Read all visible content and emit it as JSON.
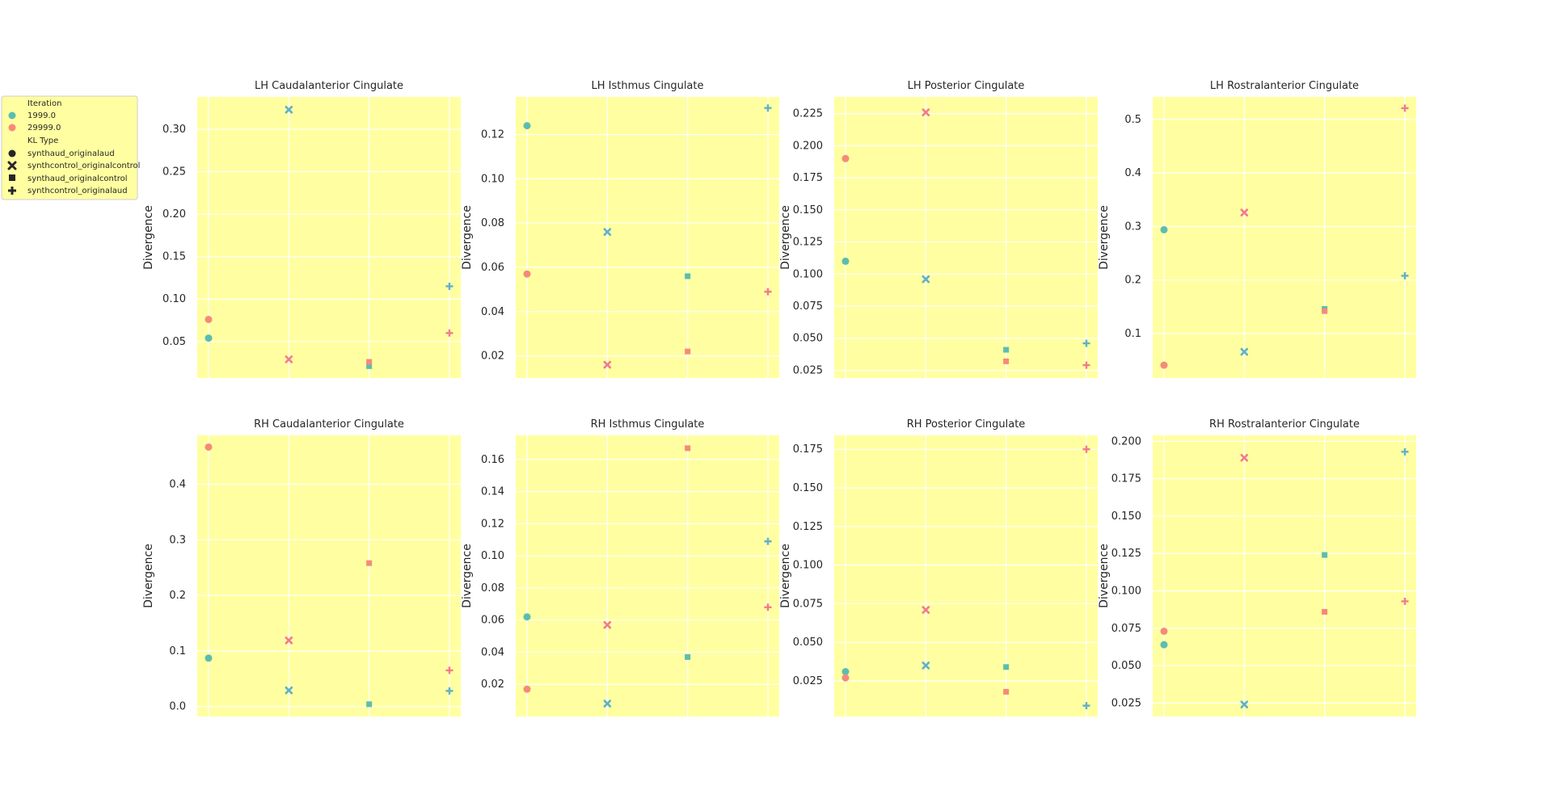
{
  "legend": {
    "iteration_title": "Iteration",
    "iteration_entries": [
      {
        "label": "1999.0",
        "color": "#66c2a5"
      },
      {
        "label": "29999.0",
        "color": "#fc8d62"
      }
    ],
    "kltype_title": "KL Type",
    "kltype_entries": [
      {
        "label": "synthaud_originalaud",
        "marker": "circle"
      },
      {
        "label": "synthcontrol_originalcontrol",
        "marker": "x"
      },
      {
        "label": "synthaud_originalcontrol",
        "marker": "square"
      },
      {
        "label": "synthcontrol_originalaud",
        "marker": "plus"
      }
    ]
  },
  "colors": {
    "panel_bg": "#ffffa1",
    "grid": "#ffffff",
    "teal": "#5bbdb0",
    "teal_cross": "#5fb0cc",
    "salmon": "#f58a7a",
    "salmon_cross": "#f27a90",
    "text": "#262626"
  },
  "chart_data": [
    {
      "type": "scatter",
      "title": "LH Caudalanterior Cingulate",
      "xlabel": "",
      "ylabel": "Divergence",
      "ylim": [
        0.007,
        0.338
      ],
      "yticks": [
        0.05,
        0.1,
        0.15,
        0.2,
        0.25,
        0.3
      ],
      "ytick_labels": [
        "0.05",
        "0.10",
        "0.15",
        "0.20",
        "0.25",
        "0.30"
      ],
      "x": [
        "synthaud_originalaud",
        "synthcontrol_originalcontrol",
        "synthaud_originalcontrol",
        "synthcontrol_originalaud"
      ],
      "series": [
        {
          "name": "1999.0",
          "values": [
            0.054,
            0.323,
            0.021,
            0.115
          ]
        },
        {
          "name": "29999.0",
          "values": [
            0.076,
            0.029,
            0.026,
            0.06
          ]
        }
      ]
    },
    {
      "type": "scatter",
      "title": "LH Isthmus Cingulate",
      "xlabel": "",
      "ylabel": "Divergence",
      "ylim": [
        0.01,
        0.137
      ],
      "yticks": [
        0.02,
        0.04,
        0.06,
        0.08,
        0.1,
        0.12
      ],
      "ytick_labels": [
        "0.02",
        "0.04",
        "0.06",
        "0.08",
        "0.10",
        "0.12"
      ],
      "x": [
        "synthaud_originalaud",
        "synthcontrol_originalcontrol",
        "synthaud_originalcontrol",
        "synthcontrol_originalaud"
      ],
      "series": [
        {
          "name": "1999.0",
          "values": [
            0.124,
            0.076,
            0.056,
            0.132
          ]
        },
        {
          "name": "29999.0",
          "values": [
            0.057,
            0.016,
            0.022,
            0.049
          ]
        }
      ]
    },
    {
      "type": "scatter",
      "title": "LH Posterior Cingulate",
      "xlabel": "",
      "ylabel": "Divergence",
      "ylim": [
        0.019,
        0.238
      ],
      "yticks": [
        0.025,
        0.05,
        0.075,
        0.1,
        0.125,
        0.15,
        0.175,
        0.2,
        0.225
      ],
      "ytick_labels": [
        "0.025",
        "0.050",
        "0.075",
        "0.100",
        "0.125",
        "0.150",
        "0.175",
        "0.200",
        "0.225"
      ],
      "x": [
        "synthaud_originalaud",
        "synthcontrol_originalcontrol",
        "synthaud_originalcontrol",
        "synthcontrol_originalaud"
      ],
      "series": [
        {
          "name": "1999.0",
          "values": [
            0.11,
            0.096,
            0.041,
            0.046
          ]
        },
        {
          "name": "29999.0",
          "values": [
            0.19,
            0.226,
            0.032,
            0.029
          ]
        }
      ]
    },
    {
      "type": "scatter",
      "title": "LH Rostralanterior Cingulate",
      "xlabel": "",
      "ylabel": "Divergence",
      "ylim": [
        0.017,
        0.542
      ],
      "yticks": [
        0.1,
        0.2,
        0.3,
        0.4,
        0.5
      ],
      "ytick_labels": [
        "0.1",
        "0.2",
        "0.3",
        "0.4",
        "0.5"
      ],
      "x": [
        "synthaud_originalaud",
        "synthcontrol_originalcontrol",
        "synthaud_originalcontrol",
        "synthcontrol_originalaud"
      ],
      "series": [
        {
          "name": "1999.0",
          "values": [
            0.294,
            0.066,
            0.146,
            0.208
          ]
        },
        {
          "name": "29999.0",
          "values": [
            0.041,
            0.326,
            0.142,
            0.521
          ]
        }
      ]
    },
    {
      "type": "scatter",
      "title": "RH Caudalanterior Cingulate",
      "xlabel": "",
      "ylabel": "Divergence",
      "ylim": [
        -0.018,
        0.488
      ],
      "yticks": [
        0.0,
        0.1,
        0.2,
        0.3,
        0.4
      ],
      "ytick_labels": [
        "0.0",
        "0.1",
        "0.2",
        "0.3",
        "0.4"
      ],
      "x": [
        "synthaud_originalaud",
        "synthcontrol_originalcontrol",
        "synthaud_originalcontrol",
        "synthcontrol_originalaud"
      ],
      "series": [
        {
          "name": "1999.0",
          "values": [
            0.087,
            0.029,
            0.004,
            0.028
          ]
        },
        {
          "name": "29999.0",
          "values": [
            0.467,
            0.119,
            0.258,
            0.065
          ]
        }
      ]
    },
    {
      "type": "scatter",
      "title": "RH Isthmus Cingulate",
      "xlabel": "",
      "ylabel": "Divergence",
      "ylim": [
        0.0,
        0.175
      ],
      "yticks": [
        0.02,
        0.04,
        0.06,
        0.08,
        0.1,
        0.12,
        0.14,
        0.16
      ],
      "ytick_labels": [
        "0.02",
        "0.04",
        "0.06",
        "0.08",
        "0.10",
        "0.12",
        "0.14",
        "0.16"
      ],
      "x": [
        "synthaud_originalaud",
        "synthcontrol_originalcontrol",
        "synthaud_originalcontrol",
        "synthcontrol_originalaud"
      ],
      "series": [
        {
          "name": "1999.0",
          "values": [
            0.062,
            0.008,
            0.037,
            0.109
          ]
        },
        {
          "name": "29999.0",
          "values": [
            0.017,
            0.057,
            0.167,
            0.068
          ]
        }
      ]
    },
    {
      "type": "scatter",
      "title": "RH Posterior Cingulate",
      "xlabel": "",
      "ylabel": "Divergence",
      "ylim": [
        0.002,
        0.184
      ],
      "yticks": [
        0.025,
        0.05,
        0.075,
        0.1,
        0.125,
        0.15,
        0.175
      ],
      "ytick_labels": [
        "0.025",
        "0.050",
        "0.075",
        "0.100",
        "0.125",
        "0.150",
        "0.175"
      ],
      "x": [
        "synthaud_originalaud",
        "synthcontrol_originalcontrol",
        "synthaud_originalcontrol",
        "synthcontrol_originalaud"
      ],
      "series": [
        {
          "name": "1999.0",
          "values": [
            0.031,
            0.035,
            0.034,
            0.009
          ]
        },
        {
          "name": "29999.0",
          "values": [
            0.027,
            0.071,
            0.018,
            0.175
          ]
        }
      ]
    },
    {
      "type": "scatter",
      "title": "RH Rostralanterior Cingulate",
      "xlabel": "",
      "ylabel": "Divergence",
      "ylim": [
        0.016,
        0.204
      ],
      "yticks": [
        0.025,
        0.05,
        0.075,
        0.1,
        0.125,
        0.15,
        0.175,
        0.2
      ],
      "ytick_labels": [
        "0.025",
        "0.050",
        "0.075",
        "0.100",
        "0.125",
        "0.150",
        "0.175",
        "0.200"
      ],
      "x": [
        "synthaud_originalaud",
        "synthcontrol_originalcontrol",
        "synthaud_originalcontrol",
        "synthcontrol_originalaud"
      ],
      "series": [
        {
          "name": "1999.0",
          "values": [
            0.064,
            0.024,
            0.124,
            0.193
          ]
        },
        {
          "name": "29999.0",
          "values": [
            0.073,
            0.189,
            0.086,
            0.093
          ]
        }
      ]
    }
  ]
}
